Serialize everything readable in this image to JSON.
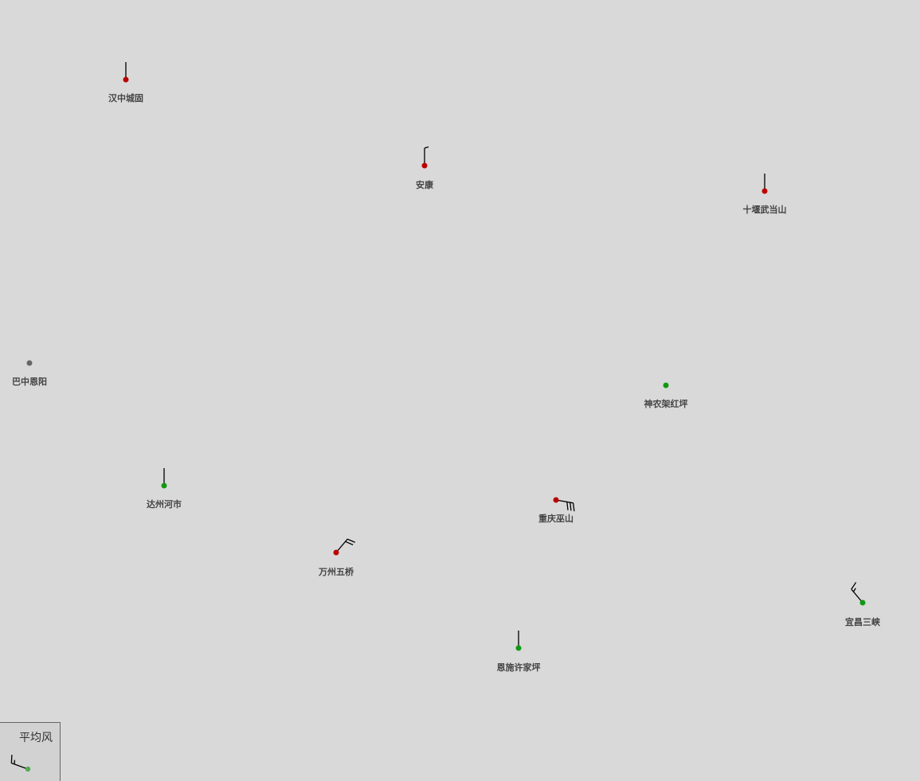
{
  "colors": {
    "background": "#d9d9d9",
    "station_red": "#bb0000",
    "station_green": "#119911",
    "station_gray": "#666666",
    "barb": "#000000",
    "label": "#444444"
  },
  "stations": [
    {
      "id": "hanzhong",
      "name": "汉中城固",
      "status": "red",
      "barb": {
        "dir_deg": 0,
        "full": 0,
        "half": 0
      }
    },
    {
      "id": "ankang",
      "name": "安康",
      "status": "red",
      "barb": {
        "dir_deg": 0,
        "full": 0,
        "half": 1
      }
    },
    {
      "id": "shiyan",
      "name": "十堰武当山",
      "status": "red",
      "barb": {
        "dir_deg": 0,
        "full": 0,
        "half": 0
      }
    },
    {
      "id": "bazhong",
      "name": "巴中恩阳",
      "status": "gray",
      "barb": null
    },
    {
      "id": "shennongjia",
      "name": "神农架红坪",
      "status": "green",
      "barb": null
    },
    {
      "id": "dazhou",
      "name": "达州河市",
      "status": "green",
      "barb": {
        "dir_deg": 0,
        "full": 0,
        "half": 0
      }
    },
    {
      "id": "wushan",
      "name": "重庆巫山",
      "status": "red",
      "barb": {
        "dir_deg": 100,
        "full": 3,
        "half": 0
      }
    },
    {
      "id": "wanzhou",
      "name": "万州五桥",
      "status": "red",
      "barb": {
        "dir_deg": 40,
        "full": 2,
        "half": 0
      }
    },
    {
      "id": "yichang",
      "name": "宜昌三峡",
      "status": "green",
      "barb": {
        "dir_deg": 320,
        "full": 1,
        "half": 1
      }
    },
    {
      "id": "enshi",
      "name": "恩施许家坪",
      "status": "green",
      "barb": {
        "dir_deg": 0,
        "full": 0,
        "half": 0
      }
    }
  ],
  "legend": {
    "title": "平均风",
    "status": "green",
    "barb": {
      "dir_deg": 290,
      "full": 1,
      "half": 1
    }
  }
}
